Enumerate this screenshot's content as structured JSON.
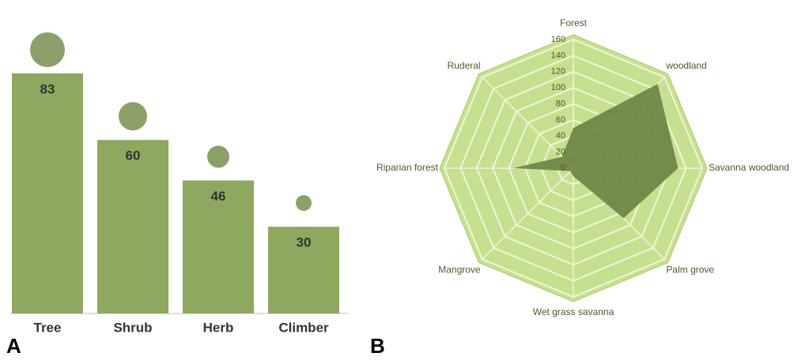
{
  "chart_data": [
    {
      "type": "bar",
      "panel_label": "A",
      "categories": [
        "Tree",
        "Shrub",
        "Herb",
        "Climber"
      ],
      "values": [
        83,
        60,
        46,
        30
      ],
      "color": "#8fa860"
    },
    {
      "type": "radar",
      "panel_label": "B",
      "categories": [
        "Forest",
        "woodland",
        "Savanna woodland",
        "Palm grove",
        "Wet grass savanna",
        "Mangrove",
        "Riparian forest",
        "Ruderal"
      ],
      "series": [
        {
          "values": [
            50,
            148,
            130,
            88,
            10,
            5,
            75,
            20
          ],
          "color": "#6b8244"
        }
      ],
      "ylim": [
        0,
        160
      ],
      "yticks": [
        0,
        20,
        40,
        60,
        80,
        100,
        120,
        140,
        160
      ],
      "grid": true,
      "background": "#c7e08f"
    }
  ]
}
